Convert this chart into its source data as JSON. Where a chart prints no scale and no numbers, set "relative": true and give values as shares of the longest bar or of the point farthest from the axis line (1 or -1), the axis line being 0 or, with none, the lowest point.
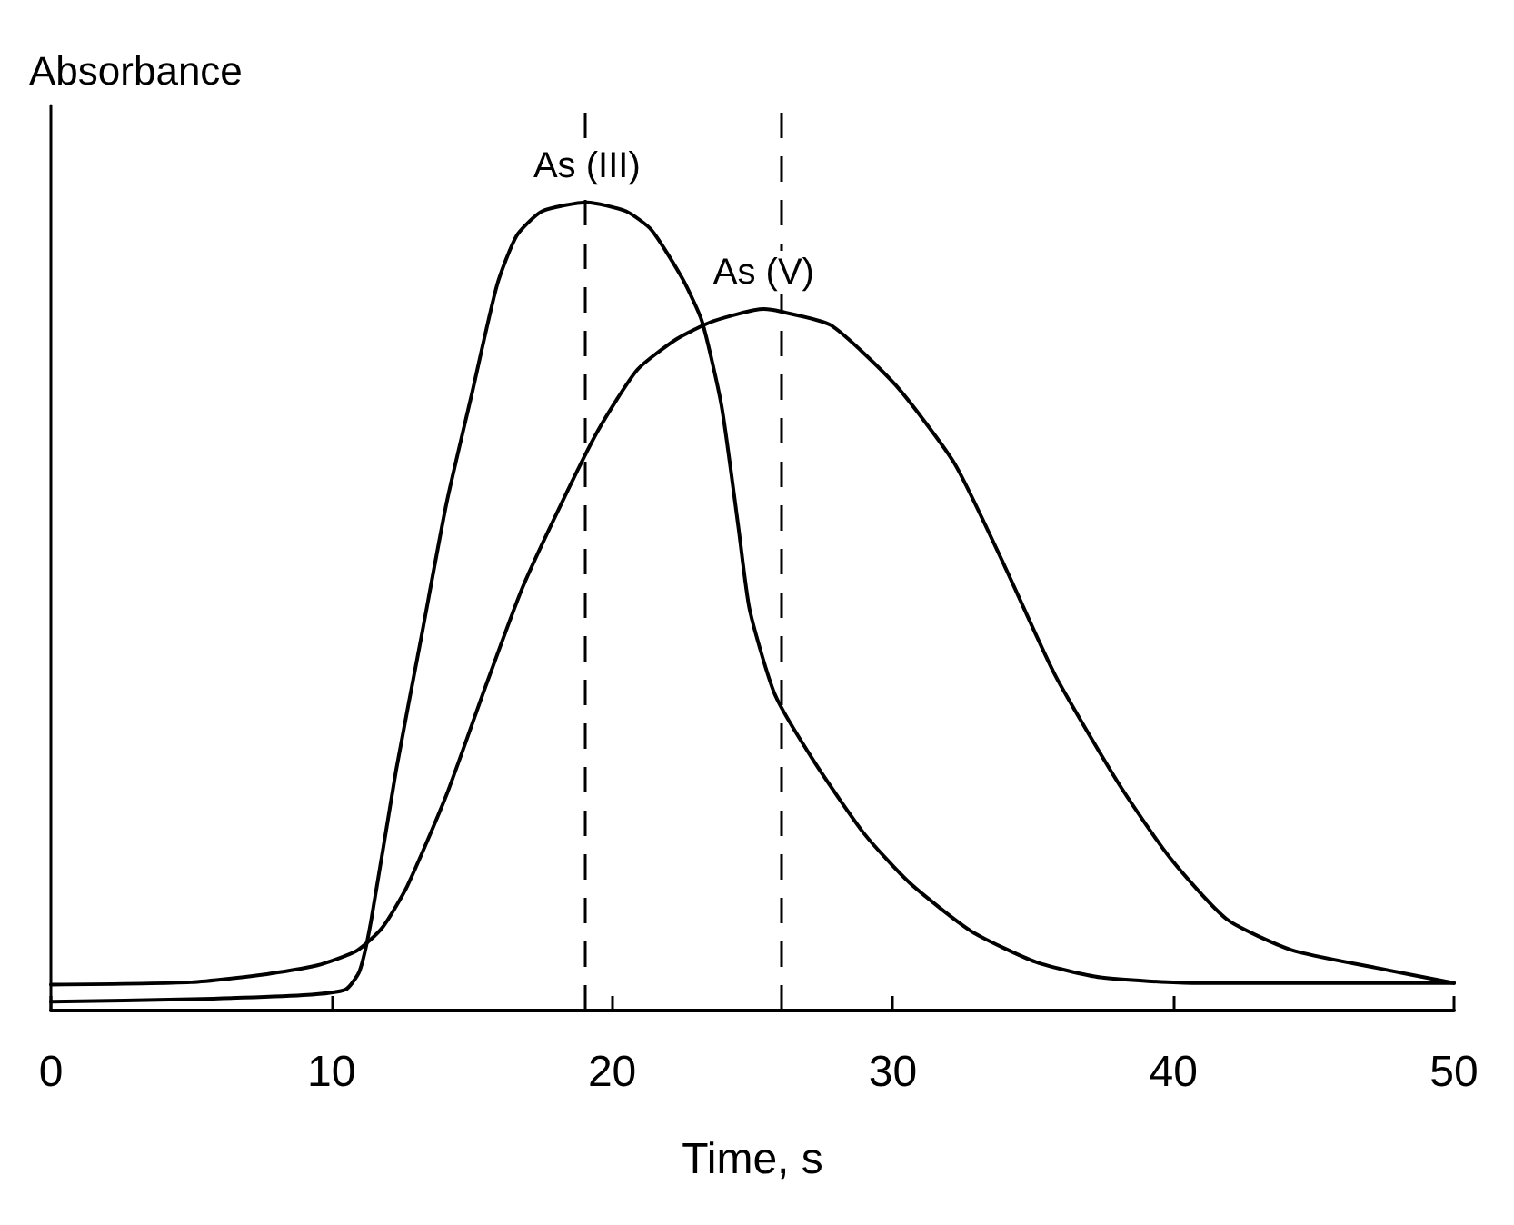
{
  "chart_data": {
    "type": "line",
    "relative": true,
    "xlabel": "Time, s",
    "ylabel": "Absorbance",
    "xlim": [
      0,
      50
    ],
    "xticks": [
      0,
      10,
      20,
      30,
      40,
      50
    ],
    "grid": false,
    "legend": false,
    "line_style": "solid",
    "series": [
      {
        "name": "As (III)",
        "color": "#000000",
        "x": [
          0,
          5,
          9,
          10.5,
          11,
          11.4,
          12.3,
          13.2,
          14.1,
          15,
          15.9,
          16.6,
          17.5,
          19.1,
          20.5,
          21.4,
          22.5,
          23.2,
          23.9,
          24.5,
          24.9,
          25.8,
          27.2,
          29,
          30.6,
          32.8,
          35.1,
          37.4,
          40.8,
          50
        ],
        "values": [
          0.011,
          0.014,
          0.019,
          0.026,
          0.049,
          0.109,
          0.297,
          0.462,
          0.628,
          0.763,
          0.898,
          0.959,
          0.989,
          1,
          0.989,
          0.966,
          0.906,
          0.853,
          0.748,
          0.598,
          0.496,
          0.391,
          0.308,
          0.218,
          0.158,
          0.098,
          0.06,
          0.041,
          0.034,
          0.034
        ]
      },
      {
        "name": "As (V)",
        "color": "#000000",
        "x": [
          0,
          5,
          7.7,
          9.5,
          10.9,
          11.8,
          12.7,
          14.1,
          15.5,
          16.8,
          18.2,
          19.5,
          20.9,
          22.3,
          23.6,
          25.4,
          26,
          27.8,
          30.1,
          32.2,
          34,
          35.8,
          38.1,
          39.9,
          41.9,
          44.2,
          47.2,
          50
        ],
        "values": [
          0.032,
          0.035,
          0.045,
          0.056,
          0.074,
          0.102,
          0.154,
          0.267,
          0.402,
          0.523,
          0.628,
          0.718,
          0.793,
          0.831,
          0.853,
          0.868,
          0.865,
          0.848,
          0.774,
          0.677,
          0.549,
          0.414,
          0.278,
          0.188,
          0.113,
          0.075,
          0.053,
          0.034
        ]
      }
    ],
    "ref_lines": [
      {
        "axis": "x",
        "value": 19,
        "color": "#000000",
        "line_style": "dashed"
      },
      {
        "axis": "x",
        "value": 26,
        "color": "#000000",
        "line_style": "dashed"
      }
    ]
  }
}
